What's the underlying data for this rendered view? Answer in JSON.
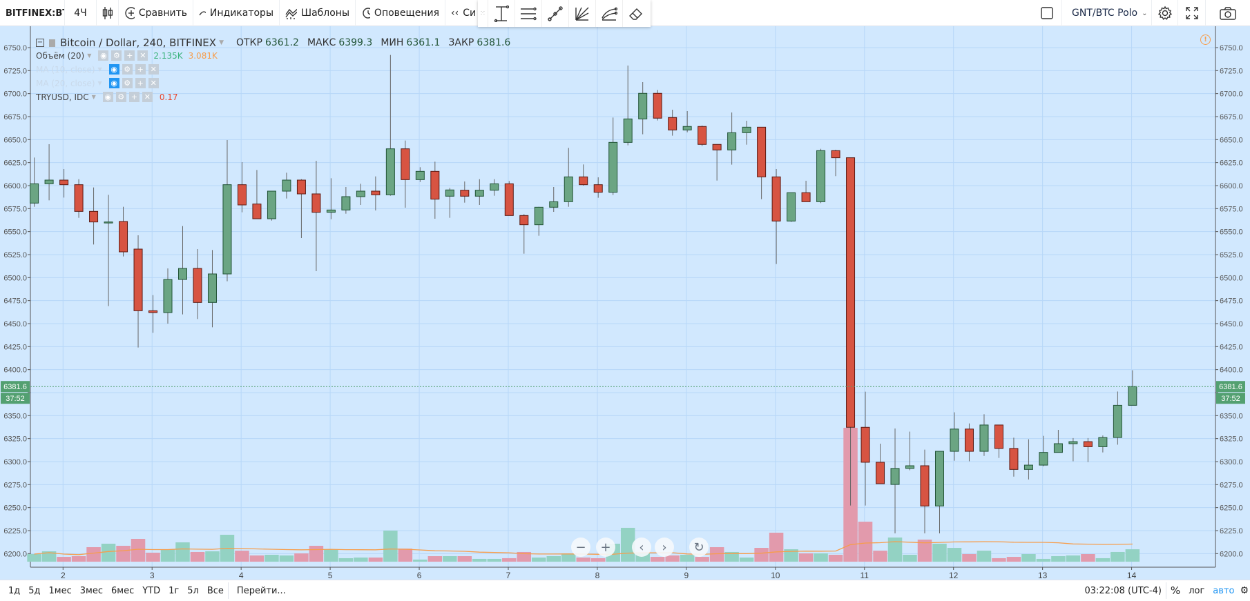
{
  "toolbar": {
    "symbol": "BITFINEX:BTCUSD",
    "interval": "4Ч",
    "chart_type_icon": "candles-icon",
    "compare": "Сравнить",
    "indicators": "Индикаторы",
    "templates": "Шаблоны",
    "alerts": "Оповещения",
    "replay": "Си",
    "compare_symbol": "GNT/BTC Polo",
    "drawing_tools": [
      "price-range-icon",
      "fib-lines-icon",
      "trend-line-icon",
      "gann-fan-icon",
      "pitchfork-icon",
      "eraser-icon"
    ]
  },
  "legend": {
    "title": "Bitcoin / Dollar, 240, BITFINEX",
    "open_label": "ОТКР",
    "open": "6361.2",
    "high_label": "МАКС",
    "high": "6399.3",
    "low_label": "МИН",
    "low": "6361.1",
    "close_label": "ЗАКР",
    "close": "6381.6",
    "studies": [
      {
        "name": "Объём (20)",
        "values": [
          "2.135K",
          "3.081K"
        ],
        "hidden": false
      },
      {
        "name": "MA (10, close)",
        "values": [],
        "hidden": true
      },
      {
        "name": "MA (20, close)",
        "values": [],
        "hidden": true
      },
      {
        "name": "TRYUSD, IDC",
        "values": [
          "0.17"
        ],
        "hidden": false
      }
    ]
  },
  "price_marker": {
    "price": "6381.6",
    "countdown": "37:52"
  },
  "nav_buttons": [
    "zoom-out",
    "zoom-in",
    "scroll-left",
    "scroll-right",
    "reset"
  ],
  "bottombar": {
    "ranges": [
      "1д",
      "5д",
      "1мес",
      "3мес",
      "6мес",
      "YTD",
      "1г",
      "5л",
      "Все"
    ],
    "goto": "Перейти...",
    "clock": "03:22:08 (UTC-4)",
    "percent": "%",
    "log": "лог",
    "auto": "авто"
  },
  "colors": {
    "background": "#d1e8fe",
    "grid": "#b7d7f8",
    "up": "#6ba583",
    "up_border": "#225437",
    "down": "#d75442",
    "down_border": "#5b1a13",
    "vol_up": "#93d2c3",
    "vol_down": "#e29aac",
    "vol_ma": "#f79d4b",
    "last_price": "#53a071"
  },
  "chart_data": {
    "type": "candlestick",
    "symbol": "Bitcoin / Dollar, 240, BITFINEX",
    "yticks": [
      6200,
      6225,
      6250,
      6275,
      6300,
      6325,
      6350,
      6375,
      6400,
      6425,
      6450,
      6475,
      6500,
      6525,
      6550,
      6575,
      6600,
      6625,
      6650,
      6675,
      6700,
      6725,
      6750
    ],
    "ylim": [
      6187.5,
      6773
    ],
    "xtick_labels": [
      "2",
      "3",
      "4",
      "5",
      "6",
      "7",
      "8",
      "9",
      "10",
      "11",
      "12",
      "13",
      "14"
    ],
    "volume_ma_period": 20,
    "last_price": 6381.6,
    "grid": true,
    "columns": [
      "open",
      "high",
      "low",
      "close",
      "volume_k"
    ],
    "ohlcv": [
      [
        6581,
        6630.5,
        6577,
        6602,
        1.31
      ],
      [
        6602,
        6645,
        6584,
        6606,
        1.79
      ],
      [
        6606,
        6618,
        6587,
        6601,
        0.83
      ],
      [
        6601,
        6607,
        6565,
        6572,
        0.95
      ],
      [
        6572,
        6598,
        6536,
        6560.5,
        2.5
      ],
      [
        6560,
        6590,
        6469,
        6560.5,
        3.1
      ],
      [
        6561,
        6577,
        6523,
        6528,
        2.74
      ],
      [
        6531,
        6546,
        6424,
        6464,
        3.93
      ],
      [
        6464,
        6481,
        6440,
        6462,
        1.55
      ],
      [
        6462,
        6510,
        6450,
        6498,
        2.14
      ],
      [
        6498,
        6556,
        6460,
        6510,
        3.33
      ],
      [
        6510,
        6531,
        6455,
        6473,
        1.67
      ],
      [
        6473,
        6530,
        6446,
        6504,
        1.79
      ],
      [
        6504,
        6649.5,
        6496,
        6601,
        4.64
      ],
      [
        6601,
        6625.5,
        6571,
        6579,
        1.9
      ],
      [
        6580,
        6617,
        6564,
        6564,
        1.07
      ],
      [
        6564,
        6594,
        6562,
        6594,
        1.19
      ],
      [
        6594,
        6614,
        6586,
        6606,
        1.07
      ],
      [
        6606,
        6607,
        6543,
        6591,
        1.43
      ],
      [
        6591,
        6627,
        6507,
        6571,
        2.74
      ],
      [
        6571,
        6608,
        6563.5,
        6573.5,
        2.14
      ],
      [
        6573.5,
        6598.5,
        6569.5,
        6588,
        0.6
      ],
      [
        6588,
        6602,
        6579,
        6594,
        0.71
      ],
      [
        6594,
        6610,
        6573,
        6590,
        0.71
      ],
      [
        6590,
        6742,
        6589,
        6640,
        5.36
      ],
      [
        6640,
        6649,
        6576,
        6606.5,
        2.26
      ],
      [
        6606.5,
        6620,
        6604,
        6615.5,
        0.36
      ],
      [
        6615.5,
        6626,
        6564,
        6585.3,
        0.95
      ],
      [
        6588.5,
        6597.5,
        6565,
        6595.3,
        0.95
      ],
      [
        6595,
        6604.5,
        6581.5,
        6588.5,
        0.95
      ],
      [
        6588.5,
        6607,
        6579,
        6595,
        0.48
      ],
      [
        6595,
        6607,
        6589,
        6602,
        0.48
      ],
      [
        6602,
        6605,
        6567.5,
        6567.5,
        0.6
      ],
      [
        6567.5,
        6569,
        6526,
        6557.5,
        1.67
      ],
      [
        6557.5,
        6577,
        6545.5,
        6576.5,
        0.71
      ],
      [
        6576.5,
        6598.5,
        6571.5,
        6582.5,
        0.95
      ],
      [
        6582.5,
        6641,
        6577,
        6609.5,
        1.43
      ],
      [
        6609.5,
        6623,
        6600,
        6601,
        0.71
      ],
      [
        6601,
        6609,
        6586.8,
        6592.8,
        0.6
      ],
      [
        6592.8,
        6674,
        6589.8,
        6647,
        3.1
      ],
      [
        6647,
        6730.5,
        6643.8,
        6672.5,
        5.84
      ],
      [
        6672.5,
        6712.5,
        6655.8,
        6700.3,
        1.59
      ],
      [
        6700.3,
        6704,
        6670.8,
        6673.3,
        0.83
      ],
      [
        6674,
        6682.5,
        6654.3,
        6660.5,
        1.07
      ],
      [
        6660.5,
        6681,
        6658,
        6664.3,
        1.19
      ],
      [
        6664.3,
        6665.3,
        6643,
        6644.8,
        0.83
      ],
      [
        6644.8,
        6644.8,
        6605.5,
        6638.8,
        2.5
      ],
      [
        6638.8,
        6679.5,
        6622.8,
        6657.5,
        1.67
      ],
      [
        6657.5,
        6670.5,
        6644.5,
        6663.5,
        0.71
      ],
      [
        6663.5,
        6663.5,
        6585.3,
        6609.5,
        2.38
      ],
      [
        6609.5,
        6618,
        6514.8,
        6561.5,
        5.0
      ],
      [
        6561.5,
        6592.3,
        6560.5,
        6592.3,
        2.14
      ],
      [
        6592.3,
        6605.3,
        6582.5,
        6582.5,
        1.43
      ],
      [
        6582.5,
        6640,
        6581,
        6638,
        1.43
      ],
      [
        6638,
        6639,
        6610.3,
        6630.3,
        1.19
      ],
      [
        6630.3,
        6630.3,
        6252.3,
        6337.3,
        23.1
      ],
      [
        6337.3,
        6376,
        6252.3,
        6299.3,
        6.9
      ],
      [
        6299.3,
        6319.5,
        6276,
        6276,
        1.9
      ],
      [
        6275.2,
        6336,
        6222,
        6292.6,
        4.17
      ],
      [
        6292.6,
        6332.6,
        6290.6,
        6295.5,
        1.19
      ],
      [
        6295.5,
        6313,
        6222,
        6251.8,
        3.81
      ],
      [
        6251.8,
        6311.2,
        6222,
        6311.2,
        3.1
      ],
      [
        6311.2,
        6353.6,
        6301,
        6335.4,
        2.38
      ],
      [
        6335.4,
        6341.5,
        6300.4,
        6311.2,
        1.31
      ],
      [
        6311.2,
        6351.5,
        6306.2,
        6339.8,
        1.9
      ],
      [
        6339.8,
        6339.8,
        6304,
        6314.3,
        0.6
      ],
      [
        6314.3,
        6326,
        6283.7,
        6291.5,
        0.83
      ],
      [
        6291.5,
        6324.3,
        6280.6,
        6296.2,
        1.31
      ],
      [
        6296.2,
        6328,
        6295,
        6310,
        0.48
      ],
      [
        6310,
        6334.5,
        6310,
        6319.5,
        0.95
      ],
      [
        6319.5,
        6325.6,
        6300.4,
        6321.7,
        1.07
      ],
      [
        6321.7,
        6325.6,
        6299.5,
        6316.2,
        1.31
      ],
      [
        6316.2,
        6328.4,
        6310,
        6326.2,
        0.6
      ],
      [
        6326.2,
        6376.2,
        6318.4,
        6361.2,
        1.67
      ],
      [
        6361.2,
        6399.3,
        6361.1,
        6381.6,
        2.14
      ]
    ]
  }
}
